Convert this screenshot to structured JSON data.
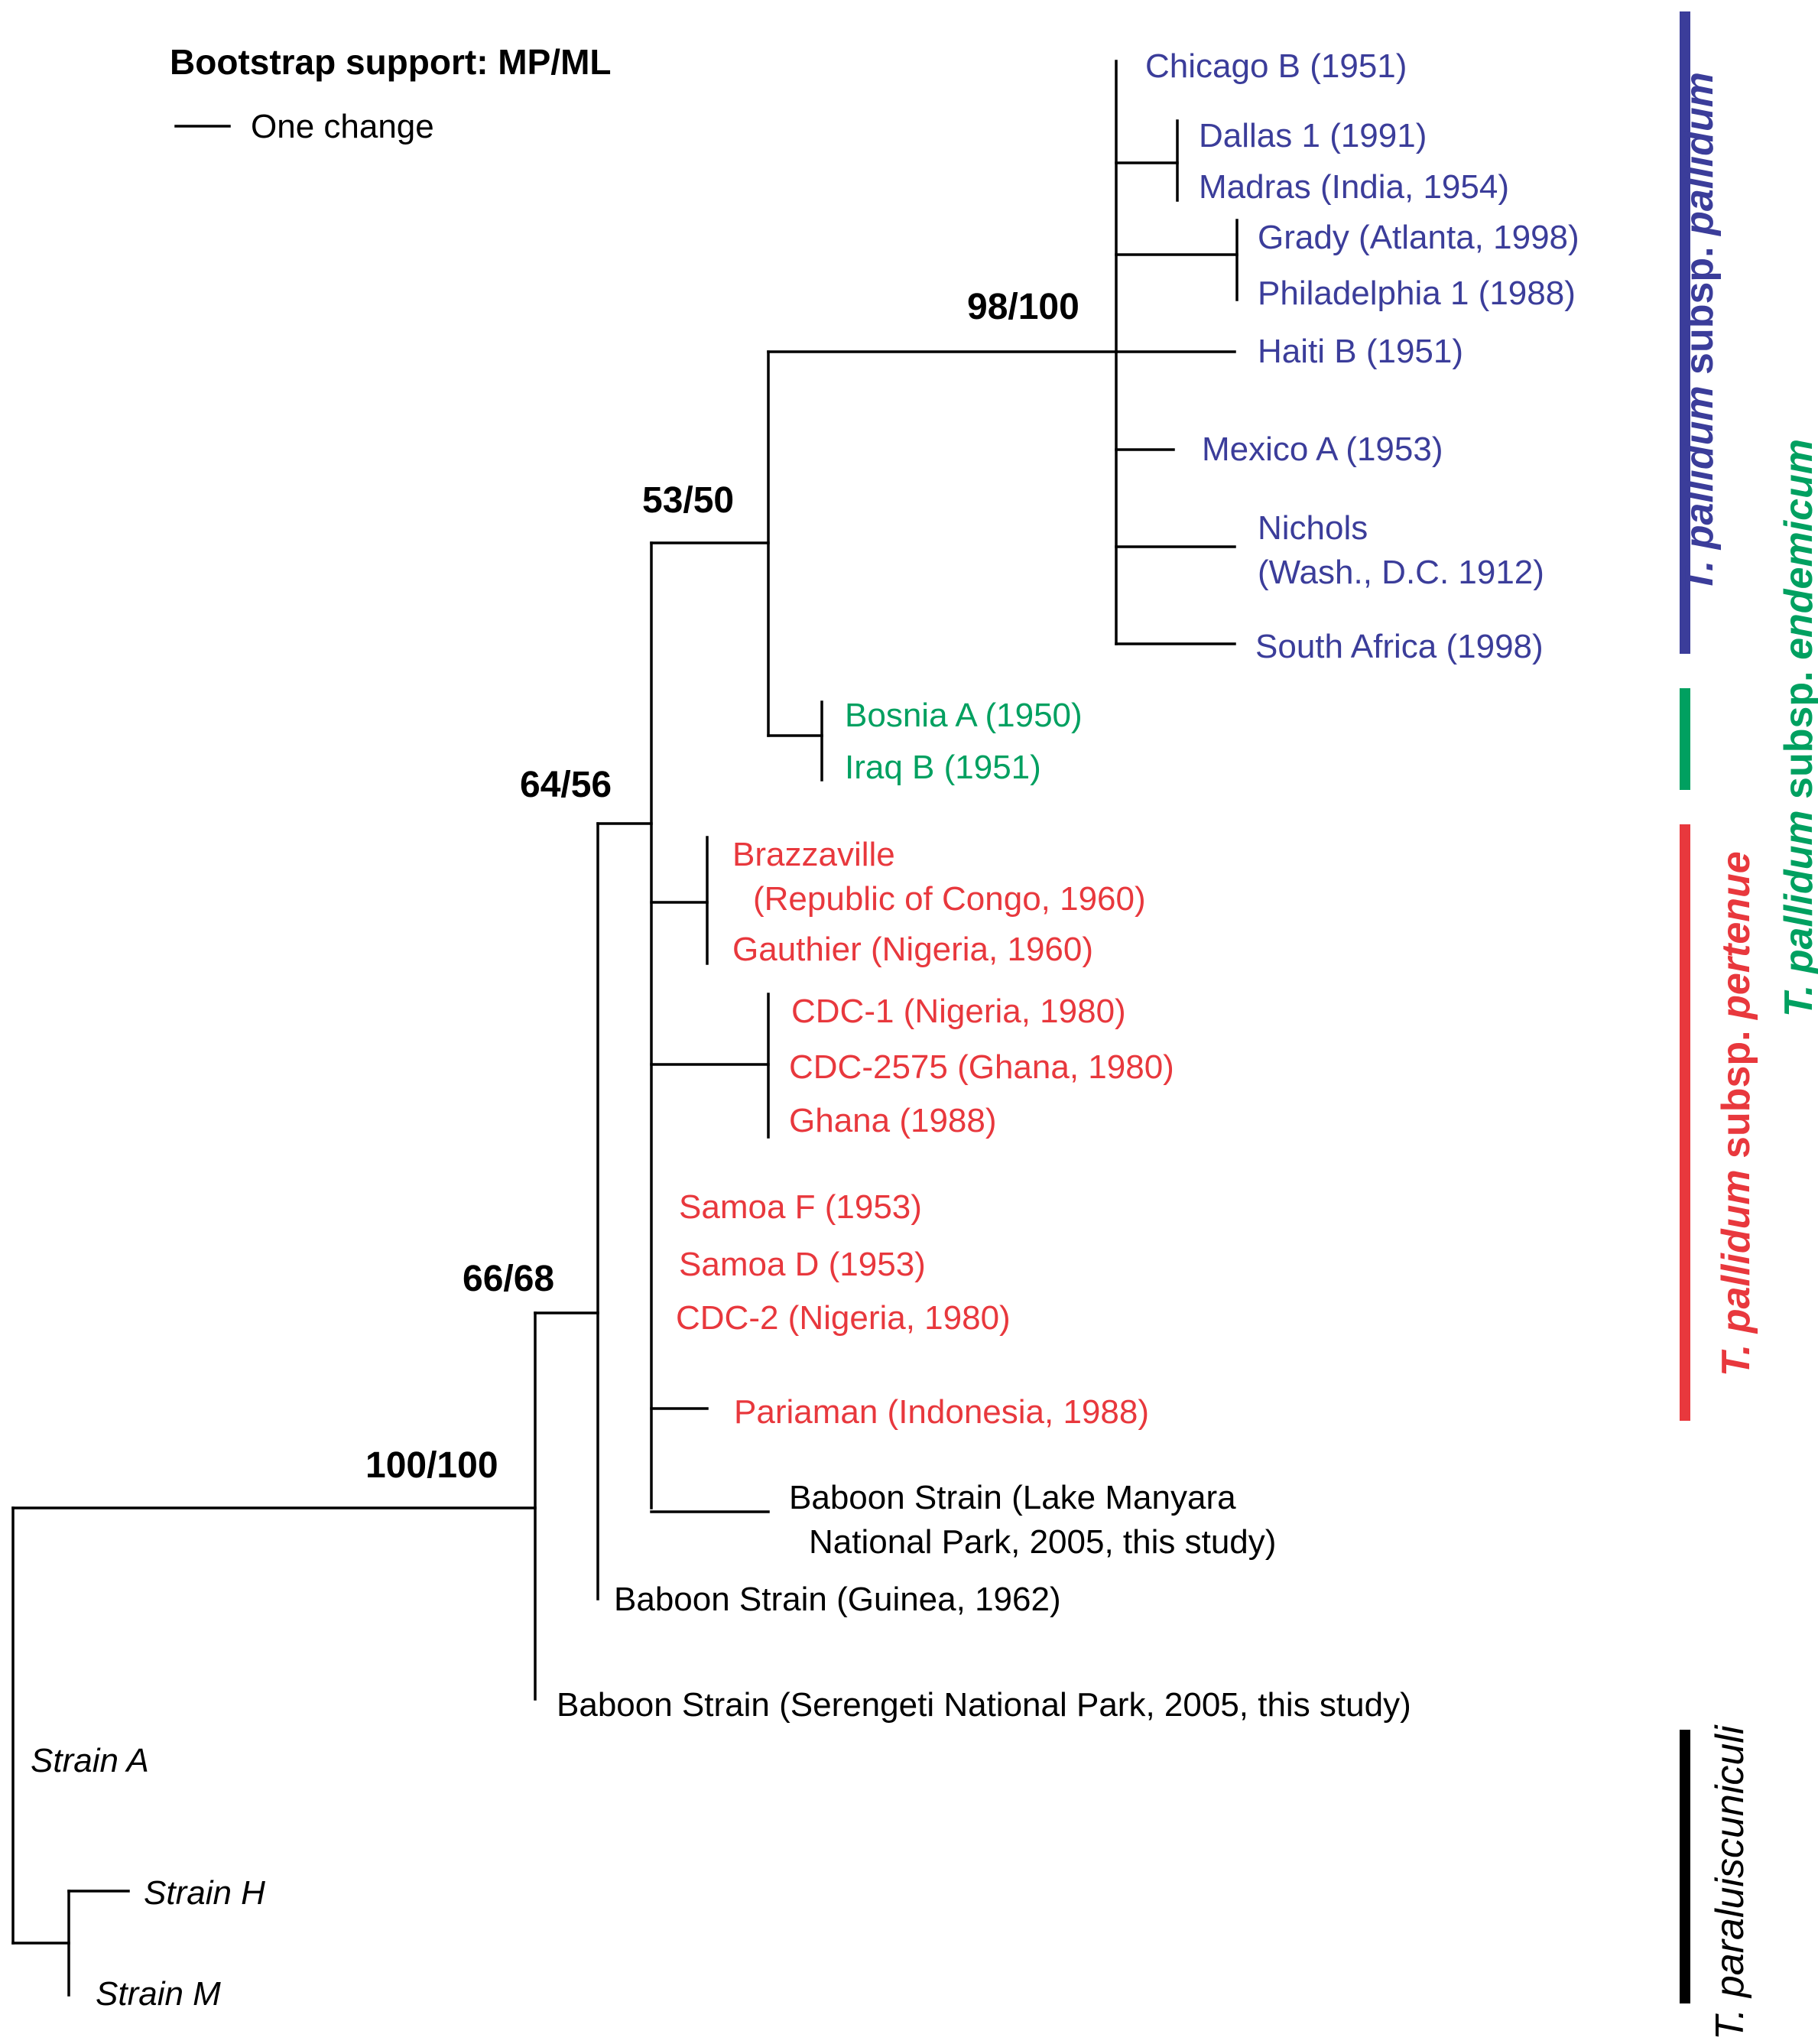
{
  "legend": {
    "title": "Bootstrap support: MP/ML",
    "scale_label": "One change"
  },
  "colors": {
    "pallidum": "#3b3d9a",
    "endemicum": "#00a060",
    "pertenue": "#e8383d",
    "other": "#000000"
  },
  "bootstrap": {
    "root": "100/100",
    "n66": "66/68",
    "n64": "64/56",
    "n53": "53/50",
    "n98": "98/100"
  },
  "leaves": {
    "chicago": "Chicago B (1951)",
    "dallas": "Dallas 1 (1991)",
    "madras": "Madras (India, 1954)",
    "grady": "Grady (Atlanta, 1998)",
    "philadelphia": "Philadelphia 1 (1988)",
    "haiti": "Haiti B (1951)",
    "mexico": "Mexico A (1953)",
    "nichols_1": "Nichols",
    "nichols_2": "(Wash., D.C. 1912)",
    "south_africa": "South Africa (1998)",
    "bosnia": "Bosnia A (1950)",
    "iraq": "Iraq B (1951)",
    "brazzaville_1": "Brazzaville",
    "brazzaville_2": "(Republic of Congo, 1960)",
    "gauthier": "Gauthier (Nigeria, 1960)",
    "cdc1": "CDC-1 (Nigeria, 1980)",
    "cdc2575": "CDC-2575 (Ghana, 1980)",
    "ghana": "Ghana (1988)",
    "samoa_f": "Samoa F (1953)",
    "samoa_d": "Samoa D (1953)",
    "cdc2": "CDC-2 (Nigeria, 1980)",
    "pariaman": "Pariaman (Indonesia, 1988)",
    "baboon_lm_1": "Baboon Strain (Lake Manyara",
    "baboon_lm_2": "National Park, 2005, this study)",
    "baboon_guinea": "Baboon Strain (Guinea, 1962)",
    "baboon_serengeti": "Baboon Strain (Serengeti National Park, 2005, this study)",
    "strain_a": "Strain A",
    "strain_h": "Strain H",
    "strain_m": "Strain M"
  },
  "clades": {
    "pallidum_italic": "T. pallidum",
    "pallidum_sub": " subsp. ",
    "pallidum_name": "pallidum",
    "endemicum_italic": "T. pallidum",
    "endemicum_sub": " subsp. ",
    "endemicum_name": "endemicum",
    "pertenue_italic": "T. pallidum",
    "pertenue_sub": " subsp. ",
    "pertenue_name": "pertenue",
    "paraluiscuniculi": "T. paraluiscuniculi"
  }
}
